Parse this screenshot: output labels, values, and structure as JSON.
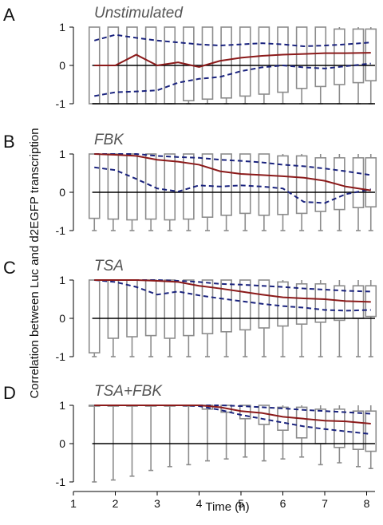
{
  "figure": {
    "xlabel": "Time (h)",
    "ylabel": "Correlation between Luc and d2EGFP transcription"
  },
  "colors": {
    "median_line": "#8b1a1a",
    "quantile_line": "#1a237e",
    "box": "#8c8c8c",
    "zero_line": "#000000"
  },
  "chart_data": [
    {
      "type": "box",
      "letter": "A",
      "title": "Unstimulated",
      "xlim": [
        1,
        8.2
      ],
      "ylim": [
        -1,
        1
      ],
      "xticks": [
        1,
        2,
        3,
        4,
        5,
        6,
        7,
        8
      ],
      "yticks": [
        -1,
        0,
        1
      ],
      "boxes": [
        {
          "x": 1.5,
          "q1": -1,
          "q3": 1,
          "min": -1,
          "max": 1
        },
        {
          "x": 1.95,
          "q1": -1,
          "q3": 1,
          "min": -1,
          "max": 1
        },
        {
          "x": 2.4,
          "q1": -1,
          "q3": 1,
          "min": -1,
          "max": 1
        },
        {
          "x": 2.85,
          "q1": -1,
          "q3": 1,
          "min": -1,
          "max": 1
        },
        {
          "x": 3.3,
          "q1": -1,
          "q3": 1,
          "min": -1,
          "max": 1
        },
        {
          "x": 3.75,
          "q1": -0.92,
          "q3": 1,
          "min": -1,
          "max": 1
        },
        {
          "x": 4.2,
          "q1": -0.88,
          "q3": 1,
          "min": -1,
          "max": 1
        },
        {
          "x": 4.65,
          "q1": -0.85,
          "q3": 1,
          "min": -1,
          "max": 1
        },
        {
          "x": 5.1,
          "q1": -0.8,
          "q3": 1,
          "min": -1,
          "max": 1
        },
        {
          "x": 5.55,
          "q1": -0.75,
          "q3": 1,
          "min": -1,
          "max": 1
        },
        {
          "x": 6.0,
          "q1": -0.7,
          "q3": 1,
          "min": -1,
          "max": 1
        },
        {
          "x": 6.45,
          "q1": -0.6,
          "q3": 1,
          "min": -1,
          "max": 1
        },
        {
          "x": 6.9,
          "q1": -0.55,
          "q3": 1,
          "min": -1,
          "max": 1
        },
        {
          "x": 7.35,
          "q1": -0.5,
          "q3": 0.95,
          "min": -1,
          "max": 1
        },
        {
          "x": 7.8,
          "q1": -0.45,
          "q3": 0.95,
          "min": -1,
          "max": 1
        },
        {
          "x": 8.1,
          "q1": -0.4,
          "q3": 0.95,
          "min": -1,
          "max": 1
        }
      ],
      "median": {
        "x": [
          1.5,
          2.0,
          2.5,
          3.0,
          3.5,
          4.0,
          4.5,
          5.0,
          5.5,
          6.0,
          6.5,
          7.0,
          7.5,
          8.1
        ],
        "y": [
          0,
          0,
          0.28,
          0,
          0.08,
          -0.04,
          0.12,
          0.2,
          0.25,
          0.28,
          0.3,
          0.32,
          0.32,
          0.33
        ]
      },
      "upper_quantile": {
        "x": [
          1.5,
          2.0,
          2.5,
          3.0,
          3.5,
          4.0,
          4.5,
          5.0,
          5.5,
          6.0,
          6.5,
          7.0,
          7.5,
          8.1
        ],
        "y": [
          0.65,
          0.8,
          0.72,
          0.65,
          0.6,
          0.55,
          0.52,
          0.55,
          0.58,
          0.55,
          0.5,
          0.52,
          0.55,
          0.6
        ]
      },
      "lower_quantile": {
        "x": [
          1.5,
          2.0,
          2.5,
          3.0,
          3.5,
          4.0,
          4.5,
          5.0,
          5.5,
          6.0,
          6.5,
          7.0,
          7.5,
          8.1
        ],
        "y": [
          -0.8,
          -0.7,
          -0.68,
          -0.65,
          -0.45,
          -0.35,
          -0.3,
          -0.15,
          -0.05,
          0,
          -0.05,
          -0.08,
          -0.02,
          0.05
        ]
      }
    },
    {
      "type": "box",
      "letter": "B",
      "title": "FBK",
      "xlim": [
        1,
        8.2
      ],
      "ylim": [
        -1,
        1
      ],
      "xticks": [
        1,
        2,
        3,
        4,
        5,
        6,
        7,
        8
      ],
      "yticks": [
        -1,
        0,
        1
      ],
      "boxes": [
        {
          "x": 1.5,
          "q1": -0.68,
          "q3": 1,
          "min": -1,
          "max": 1
        },
        {
          "x": 1.95,
          "q1": -0.7,
          "q3": 1,
          "min": -1,
          "max": 1
        },
        {
          "x": 2.4,
          "q1": -0.72,
          "q3": 1,
          "min": -1,
          "max": 1
        },
        {
          "x": 2.85,
          "q1": -0.7,
          "q3": 1,
          "min": -1,
          "max": 1
        },
        {
          "x": 3.3,
          "q1": -0.72,
          "q3": 1,
          "min": -1,
          "max": 1
        },
        {
          "x": 3.75,
          "q1": -0.7,
          "q3": 1,
          "min": -1,
          "max": 1
        },
        {
          "x": 4.2,
          "q1": -0.65,
          "q3": 1,
          "min": -1,
          "max": 1
        },
        {
          "x": 4.65,
          "q1": -0.6,
          "q3": 1,
          "min": -1,
          "max": 1
        },
        {
          "x": 5.1,
          "q1": -0.55,
          "q3": 1,
          "min": -1,
          "max": 1
        },
        {
          "x": 5.55,
          "q1": -0.6,
          "q3": 1,
          "min": -1,
          "max": 1
        },
        {
          "x": 6.0,
          "q1": -0.58,
          "q3": 0.95,
          "min": -1,
          "max": 1
        },
        {
          "x": 6.45,
          "q1": -0.55,
          "q3": 0.95,
          "min": -1,
          "max": 1
        },
        {
          "x": 6.9,
          "q1": -0.5,
          "q3": 0.9,
          "min": -1,
          "max": 1
        },
        {
          "x": 7.35,
          "q1": -0.45,
          "q3": 0.9,
          "min": -1,
          "max": 1
        },
        {
          "x": 7.8,
          "q1": -0.4,
          "q3": 0.9,
          "min": -1,
          "max": 1
        },
        {
          "x": 8.1,
          "q1": -0.38,
          "q3": 0.9,
          "min": -1,
          "max": 1
        }
      ],
      "median": {
        "x": [
          1.5,
          2.0,
          2.5,
          3.0,
          3.5,
          4.0,
          4.5,
          5.0,
          5.5,
          6.0,
          6.5,
          7.0,
          7.5,
          8.1
        ],
        "y": [
          1,
          0.98,
          0.95,
          0.85,
          0.8,
          0.72,
          0.55,
          0.48,
          0.45,
          0.42,
          0.38,
          0.3,
          0.15,
          0.05
        ]
      },
      "upper_quantile": {
        "x": [
          1.5,
          2.0,
          2.5,
          3.0,
          3.5,
          4.0,
          4.5,
          5.0,
          5.5,
          6.0,
          6.5,
          7.0,
          7.5,
          8.1
        ],
        "y": [
          1,
          1,
          1,
          0.95,
          0.92,
          0.9,
          0.85,
          0.82,
          0.78,
          0.72,
          0.68,
          0.62,
          0.55,
          0.45
        ]
      },
      "lower_quantile": {
        "x": [
          1.5,
          2.0,
          2.5,
          3.0,
          3.5,
          4.0,
          4.5,
          5.0,
          5.5,
          6.0,
          6.5,
          7.0,
          7.5,
          8.1
        ],
        "y": [
          0.65,
          0.58,
          0.35,
          0.1,
          0.02,
          0.18,
          0.15,
          0.18,
          0.15,
          0.1,
          -0.25,
          -0.28,
          -0.05,
          0.08
        ]
      }
    },
    {
      "type": "box",
      "letter": "C",
      "title": "TSA",
      "xlim": [
        1,
        8.2
      ],
      "ylim": [
        -1,
        1
      ],
      "xticks": [
        1,
        2,
        3,
        4,
        5,
        6,
        7,
        8
      ],
      "yticks": [
        -1,
        0,
        1
      ],
      "boxes": [
        {
          "x": 1.5,
          "q1": -0.9,
          "q3": 1,
          "min": -1,
          "max": 1
        },
        {
          "x": 1.95,
          "q1": -0.52,
          "q3": 1,
          "min": -1,
          "max": 1
        },
        {
          "x": 2.4,
          "q1": -0.48,
          "q3": 1,
          "min": -1,
          "max": 1
        },
        {
          "x": 2.85,
          "q1": -0.45,
          "q3": 1,
          "min": -1,
          "max": 1
        },
        {
          "x": 3.3,
          "q1": -0.52,
          "q3": 1,
          "min": -1,
          "max": 1
        },
        {
          "x": 3.75,
          "q1": -0.45,
          "q3": 1,
          "min": -1,
          "max": 1
        },
        {
          "x": 4.2,
          "q1": -0.4,
          "q3": 1,
          "min": -1,
          "max": 1
        },
        {
          "x": 4.65,
          "q1": -0.35,
          "q3": 1,
          "min": -1,
          "max": 1
        },
        {
          "x": 5.1,
          "q1": -0.3,
          "q3": 1,
          "min": -1,
          "max": 1
        },
        {
          "x": 5.55,
          "q1": -0.25,
          "q3": 1,
          "min": -1,
          "max": 1
        },
        {
          "x": 6.0,
          "q1": -0.2,
          "q3": 0.95,
          "min": -1,
          "max": 1
        },
        {
          "x": 6.45,
          "q1": -0.15,
          "q3": 0.9,
          "min": -1,
          "max": 1
        },
        {
          "x": 6.9,
          "q1": -0.1,
          "q3": 0.9,
          "min": -1,
          "max": 1
        },
        {
          "x": 7.35,
          "q1": -0.05,
          "q3": 0.85,
          "min": -1,
          "max": 1
        },
        {
          "x": 7.8,
          "q1": 0,
          "q3": 0.85,
          "min": -1,
          "max": 1
        },
        {
          "x": 8.1,
          "q1": 0.05,
          "q3": 0.85,
          "min": -1,
          "max": 1
        }
      ],
      "median": {
        "x": [
          1.5,
          2.0,
          2.5,
          3.0,
          3.5,
          4.0,
          4.5,
          5.0,
          5.5,
          6.0,
          6.5,
          7.0,
          7.5,
          8.1
        ],
        "y": [
          1,
          1,
          1,
          0.98,
          0.95,
          0.85,
          0.78,
          0.7,
          0.62,
          0.55,
          0.52,
          0.5,
          0.45,
          0.43
        ]
      },
      "upper_quantile": {
        "x": [
          1.5,
          2.0,
          2.5,
          3.0,
          3.5,
          4.0,
          4.5,
          5.0,
          5.5,
          6.0,
          6.5,
          7.0,
          7.5,
          8.1
        ],
        "y": [
          1,
          1,
          1,
          1,
          0.98,
          0.95,
          0.9,
          0.88,
          0.85,
          0.82,
          0.78,
          0.75,
          0.72,
          0.7
        ]
      },
      "lower_quantile": {
        "x": [
          1.5,
          2.0,
          2.5,
          3.0,
          3.5,
          4.0,
          4.5,
          5.0,
          5.5,
          6.0,
          6.5,
          7.0,
          7.5,
          8.1
        ],
        "y": [
          1,
          0.95,
          0.82,
          0.62,
          0.7,
          0.6,
          0.52,
          0.45,
          0.38,
          0.32,
          0.28,
          0.22,
          0.2,
          0.22
        ]
      }
    },
    {
      "type": "box",
      "letter": "D",
      "title": "TSA+FBK",
      "xlim": [
        1,
        8.2
      ],
      "ylim": [
        -1,
        1
      ],
      "xticks": [
        1,
        2,
        3,
        4,
        5,
        6,
        7,
        8
      ],
      "yticks": [
        -1,
        0,
        1
      ],
      "boxes": [
        {
          "x": 1.5,
          "q1": 1,
          "q3": 1,
          "min": -1,
          "max": 1
        },
        {
          "x": 1.95,
          "q1": 1,
          "q3": 1,
          "min": -0.95,
          "max": 1
        },
        {
          "x": 2.4,
          "q1": 1,
          "q3": 1,
          "min": -0.85,
          "max": 1
        },
        {
          "x": 2.85,
          "q1": 1,
          "q3": 1,
          "min": -0.7,
          "max": 1
        },
        {
          "x": 3.3,
          "q1": 1,
          "q3": 1,
          "min": -0.6,
          "max": 1
        },
        {
          "x": 3.75,
          "q1": 1,
          "q3": 1,
          "min": -0.55,
          "max": 1
        },
        {
          "x": 4.2,
          "q1": 0.9,
          "q3": 1,
          "min": -0.45,
          "max": 1
        },
        {
          "x": 4.65,
          "q1": 0.82,
          "q3": 1,
          "min": -0.4,
          "max": 1
        },
        {
          "x": 5.1,
          "q1": 0.65,
          "q3": 1,
          "min": -0.35,
          "max": 1
        },
        {
          "x": 5.55,
          "q1": 0.5,
          "q3": 1,
          "min": -0.45,
          "max": 1
        },
        {
          "x": 6.0,
          "q1": 0.35,
          "q3": 0.95,
          "min": -0.4,
          "max": 1
        },
        {
          "x": 6.45,
          "q1": 0.15,
          "q3": 0.95,
          "min": -0.35,
          "max": 1
        },
        {
          "x": 6.9,
          "q1": 0.0,
          "q3": 0.9,
          "min": -0.55,
          "max": 1
        },
        {
          "x": 7.35,
          "q1": -0.1,
          "q3": 0.9,
          "min": -0.5,
          "max": 1
        },
        {
          "x": 7.8,
          "q1": -0.15,
          "q3": 0.85,
          "min": -0.6,
          "max": 1
        },
        {
          "x": 8.1,
          "q1": -0.2,
          "q3": 0.85,
          "min": -0.65,
          "max": 1
        }
      ],
      "median": {
        "x": [
          1.5,
          2.0,
          2.5,
          3.0,
          3.5,
          4.0,
          4.5,
          5.0,
          5.5,
          6.0,
          6.5,
          7.0,
          7.5,
          8.1
        ],
        "y": [
          1,
          1,
          1,
          1,
          1,
          1,
          0.95,
          0.85,
          0.8,
          0.7,
          0.65,
          0.6,
          0.58,
          0.52
        ]
      },
      "upper_quantile": {
        "x": [
          1.5,
          2.0,
          2.5,
          3.0,
          3.5,
          4.0,
          4.5,
          5.0,
          5.5,
          6.0,
          6.5,
          7.0,
          7.5,
          8.1
        ],
        "y": [
          1,
          1,
          1,
          1,
          1,
          1,
          1,
          0.98,
          0.95,
          0.92,
          0.88,
          0.85,
          0.82,
          0.78
        ]
      },
      "lower_quantile": {
        "x": [
          1.5,
          2.0,
          2.5,
          3.0,
          3.5,
          4.0,
          4.5,
          5.0,
          5.5,
          6.0,
          6.5,
          7.0,
          7.5,
          8.1
        ],
        "y": [
          1,
          1,
          1,
          1,
          1,
          0.98,
          0.88,
          0.75,
          0.65,
          0.55,
          0.45,
          0.38,
          0.32,
          0.25
        ]
      }
    }
  ]
}
